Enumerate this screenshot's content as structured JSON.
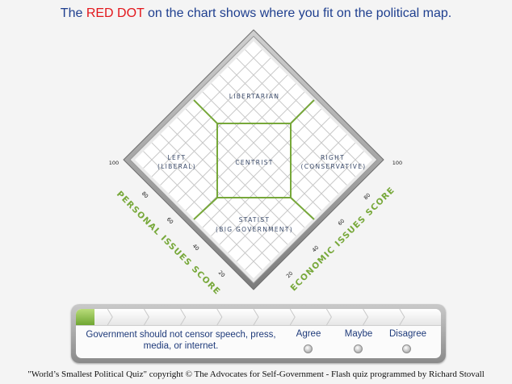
{
  "headline": {
    "before": "The ",
    "highlight": "RED DOT",
    "after": " on the chart shows where you fit on the political map."
  },
  "chart": {
    "regions": {
      "libertarian": "LIBERTARIAN",
      "left_line1": "LEFT",
      "left_line2": "(LIBERAL)",
      "centrist": "CENTRIST",
      "right_line1": "RIGHT",
      "right_line2": "(CONSERVATIVE)",
      "statist_line1": "STATIST",
      "statist_line2": "(BIG GOVERNMENT)"
    },
    "personal_axis": {
      "title": "PERSONAL ISSUES SCORE",
      "ticks": [
        "100",
        "80",
        "60",
        "40",
        "20"
      ]
    },
    "economic_axis": {
      "title": "ECONOMIC ISSUES SCORE",
      "ticks": [
        "20",
        "40",
        "60",
        "80",
        "100"
      ]
    },
    "colors": {
      "accent_green": "#77a83a",
      "grid": "#c9c9c9",
      "frame": "#8c8c8c"
    }
  },
  "question": {
    "text": "Government should not censor speech, press, media, or internet.",
    "options": [
      {
        "label": "Agree"
      },
      {
        "label": "Maybe"
      },
      {
        "label": "Disagree"
      }
    ],
    "progress_fraction": 0.05,
    "progress_steps": 10
  },
  "footer": {
    "text": "\"World’s Smallest Political Quiz\" copyright © The Advocates for Self-Government - Flash quiz programmed by Richard Stovall"
  }
}
